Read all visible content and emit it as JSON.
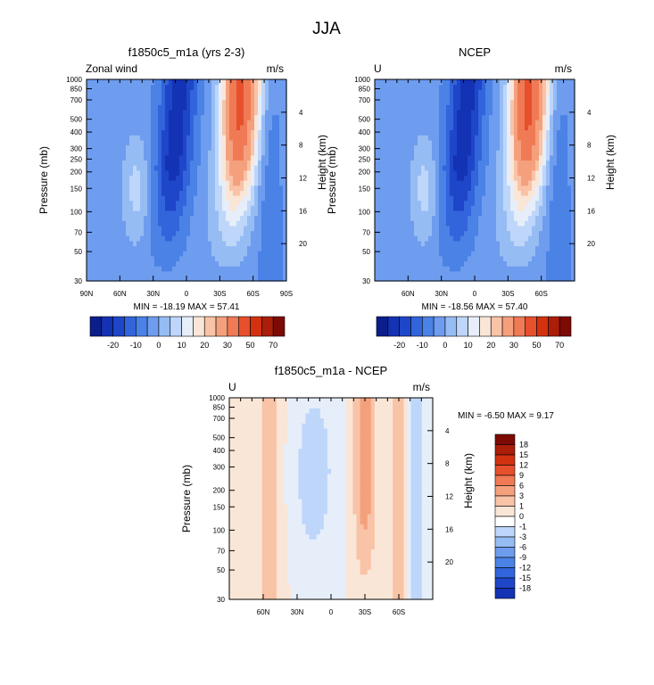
{
  "figure": {
    "title": "JJA"
  },
  "chart_data": [
    {
      "type": "heatmap",
      "title": "f1850c5_m1a (yrs 2-3)",
      "left_label": "Zonal wind",
      "right_label": "m/s",
      "xlabel": "",
      "ylabel": "Pressure (mb)",
      "y2label": "Height (km)",
      "x_ticks": [
        "90N",
        "60N",
        "30N",
        "0",
        "30S",
        "60S",
        "90S"
      ],
      "x_tick_values": [
        90,
        60,
        30,
        0,
        -30,
        -60,
        -90
      ],
      "xlim": [
        90,
        -90
      ],
      "y_ticks": [
        30,
        50,
        70,
        100,
        150,
        200,
        250,
        300,
        400,
        500,
        700,
        850,
        1000
      ],
      "ylim": [
        1000,
        30
      ],
      "y2_ticks": [
        4,
        8,
        12,
        16,
        20
      ],
      "stats": "MIN = -18.19  MAX =  57.41",
      "colorbar": {
        "orientation": "horizontal",
        "labels": [
          "-20",
          "-10",
          "0",
          "10",
          "20",
          "30",
          "50",
          "70"
        ],
        "colors": [
          "#0a1e8c",
          "#1432b4",
          "#1e46c8",
          "#3264dc",
          "#4a82e6",
          "#6e9cee",
          "#96bcf4",
          "#bed6fa",
          "#e6eefa",
          "#fae6d7",
          "#f8c3a6",
          "#f5a07d",
          "#f07a55",
          "#e6502d",
          "#d2320f",
          "#aa1e0a",
          "#7d0a05"
        ]
      }
    },
    {
      "type": "heatmap",
      "title": "NCEP",
      "left_label": "U",
      "right_label": "m/s",
      "xlabel": "",
      "ylabel": "Pressure (mb)",
      "y2label": "Height (km)",
      "x_ticks": [
        "60N",
        "30N",
        "0",
        "30S",
        "60S"
      ],
      "x_tick_values": [
        60,
        30,
        0,
        -30,
        -60
      ],
      "xlim": [
        90,
        -90
      ],
      "y_ticks": [
        30,
        50,
        70,
        100,
        150,
        200,
        250,
        300,
        400,
        500,
        700,
        850,
        1000
      ],
      "ylim": [
        1000,
        30
      ],
      "y2_ticks": [
        4,
        8,
        12,
        16,
        20
      ],
      "stats": "MIN = -18.56  MAX =  57.40",
      "colorbar": {
        "orientation": "horizontal",
        "labels": [
          "-20",
          "-10",
          "0",
          "10",
          "20",
          "30",
          "50",
          "70"
        ],
        "colors": [
          "#0a1e8c",
          "#1432b4",
          "#1e46c8",
          "#3264dc",
          "#4a82e6",
          "#6e9cee",
          "#96bcf4",
          "#bed6fa",
          "#e6eefa",
          "#fae6d7",
          "#f8c3a6",
          "#f5a07d",
          "#f07a55",
          "#e6502d",
          "#d2320f",
          "#aa1e0a",
          "#7d0a05"
        ]
      }
    },
    {
      "type": "heatmap",
      "title": "f1850c5_m1a - NCEP",
      "left_label": "U",
      "right_label": "m/s",
      "xlabel": "",
      "ylabel": "Pressure (mb)",
      "y2label": "Height (km)",
      "x_ticks": [
        "60N",
        "30N",
        "0",
        "30S",
        "60S"
      ],
      "x_tick_values": [
        60,
        30,
        0,
        -30,
        -60
      ],
      "xlim": [
        90,
        -90
      ],
      "y_ticks": [
        30,
        50,
        70,
        100,
        150,
        200,
        300,
        400,
        500,
        700,
        850,
        1000
      ],
      "ylim": [
        1000,
        30
      ],
      "y2_ticks": [
        4,
        8,
        12,
        16,
        20
      ],
      "stats": "MIN =  -6.50  MAX =   9.17",
      "colorbar": {
        "orientation": "vertical",
        "labels": [
          "18",
          "15",
          "12",
          "9",
          "6",
          "3",
          "1",
          "0",
          "-1",
          "-3",
          "-6",
          "-9",
          "-12",
          "-15",
          "-18"
        ],
        "colors": [
          "#7d0a05",
          "#aa1e0a",
          "#d2320f",
          "#e6502d",
          "#f07a55",
          "#f5a07d",
          "#f8c3a6",
          "#fae6d7",
          "#ffffff",
          "#bed6fa",
          "#96bcf4",
          "#6e9cee",
          "#4a82e6",
          "#3264dc",
          "#1e46c8",
          "#1432b4"
        ]
      }
    }
  ]
}
